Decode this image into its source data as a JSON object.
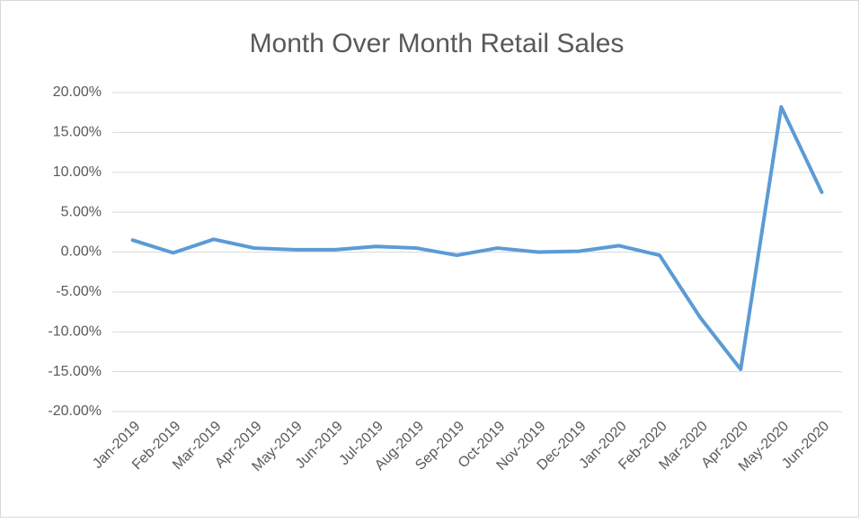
{
  "chart_data": {
    "type": "line",
    "title": "Month Over Month Retail Sales",
    "categories": [
      "Jan-2019",
      "Feb-2019",
      "Mar-2019",
      "Apr-2019",
      "May-2019",
      "Jun-2019",
      "Jul-2019",
      "Aug-2019",
      "Sep-2019",
      "Oct-2019",
      "Nov-2019",
      "Dec-2019",
      "Jan-2020",
      "Feb-2020",
      "Mar-2020",
      "Apr-2020",
      "May-2020",
      "Jun-2020"
    ],
    "series": [
      {
        "name": "Month Over Month Retail Sales",
        "color": "#5b9bd5",
        "values": [
          1.5,
          -0.1,
          1.6,
          0.5,
          0.3,
          0.3,
          0.7,
          0.5,
          -0.4,
          0.5,
          0.0,
          0.1,
          0.8,
          -0.4,
          -8.2,
          -14.7,
          18.2,
          7.5
        ]
      }
    ],
    "ylim": [
      -20,
      20
    ],
    "yticks": [
      {
        "value": -20,
        "label": "-20.00%"
      },
      {
        "value": -15,
        "label": "-15.00%"
      },
      {
        "value": -10,
        "label": "-10.00%"
      },
      {
        "value": -5,
        "label": "-5.00%"
      },
      {
        "value": 0,
        "label": "0.00%"
      },
      {
        "value": 5,
        "label": "5.00%"
      },
      {
        "value": 10,
        "label": "10.00%"
      },
      {
        "value": 15,
        "label": "15.00%"
      },
      {
        "value": 20,
        "label": "20.00%"
      }
    ],
    "grid": true
  }
}
